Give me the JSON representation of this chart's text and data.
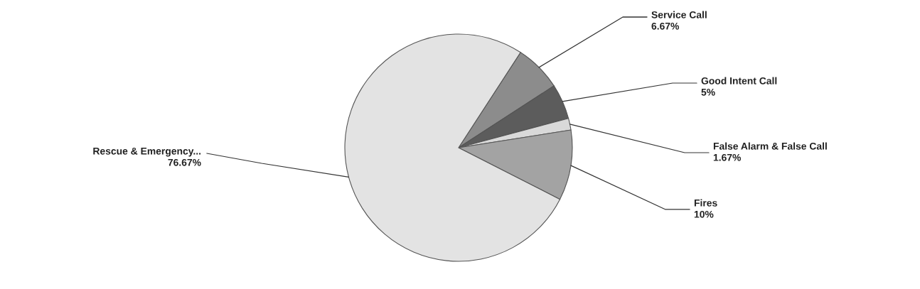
{
  "chart_data": {
    "type": "pie",
    "categories": [
      "Service Call",
      "Good Intent Call",
      "False Alarm & False Call",
      "Fires",
      "Rescue & Emergency..."
    ],
    "values": [
      6.67,
      5,
      1.67,
      10,
      76.67
    ],
    "colors": [
      "#8c8c8c",
      "#5c5c5c",
      "#d9d9d9",
      "#a3a3a3",
      "#e3e3e3"
    ],
    "value_labels": [
      "6.67%",
      "5%",
      "1.67%",
      "10%",
      "76.67%"
    ]
  }
}
